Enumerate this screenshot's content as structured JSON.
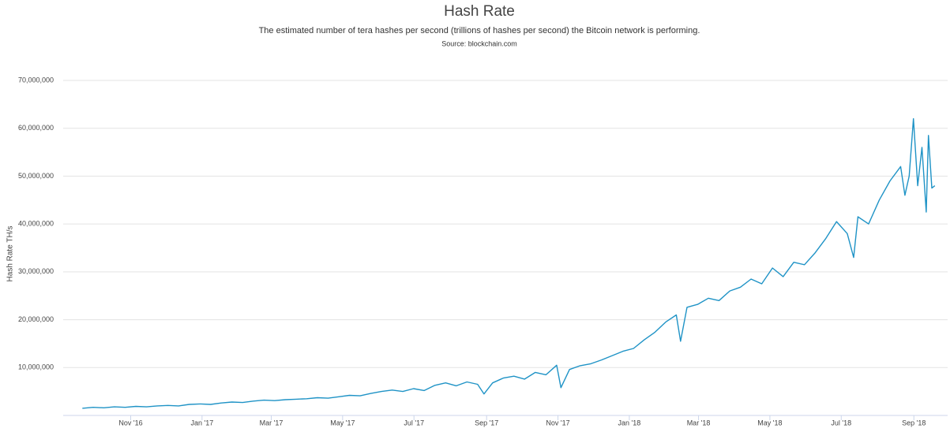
{
  "chart_data": {
    "type": "line",
    "title": "Hash Rate",
    "subtitle": "The estimated number of tera hashes per second (trillions of hashes per second) the Bitcoin network is performing.",
    "source": "Source: blockchain.com",
    "y_label": "Hash Rate TH/s",
    "color": "#1f93c6",
    "grid": true,
    "xlim": [
      2016.675,
      2018.745
    ],
    "ylim": [
      0,
      70000000
    ],
    "xticks": [
      {
        "value": 2016.833,
        "label": "Nov '16"
      },
      {
        "value": 2017.0,
        "label": "Jan '17"
      },
      {
        "value": 2017.162,
        "label": "Mar '17"
      },
      {
        "value": 2017.329,
        "label": "May '17"
      },
      {
        "value": 2017.496,
        "label": "Jul '17"
      },
      {
        "value": 2017.666,
        "label": "Sep '17"
      },
      {
        "value": 2017.833,
        "label": "Nov '17"
      },
      {
        "value": 2018.0,
        "label": "Jan '18"
      },
      {
        "value": 2018.162,
        "label": "Mar '18"
      },
      {
        "value": 2018.329,
        "label": "May '18"
      },
      {
        "value": 2018.496,
        "label": "Jul '18"
      },
      {
        "value": 2018.666,
        "label": "Sep '18"
      }
    ],
    "yticks": [
      {
        "value": 10000000,
        "label": "10,000,000"
      },
      {
        "value": 20000000,
        "label": "20,000,000"
      },
      {
        "value": 30000000,
        "label": "30,000,000"
      },
      {
        "value": 40000000,
        "label": "40,000,000"
      },
      {
        "value": 50000000,
        "label": "50,000,000"
      },
      {
        "value": 60000000,
        "label": "60,000,000"
      },
      {
        "value": 70000000,
        "label": "70,000,000"
      }
    ],
    "x": [
      2016.72,
      2016.745,
      2016.77,
      2016.795,
      2016.82,
      2016.845,
      2016.87,
      2016.895,
      2016.92,
      2016.945,
      2016.97,
      2016.995,
      2017.02,
      2017.045,
      2017.07,
      2017.095,
      2017.12,
      2017.145,
      2017.17,
      2017.195,
      2017.22,
      2017.245,
      2017.27,
      2017.295,
      2017.32,
      2017.345,
      2017.37,
      2017.395,
      2017.42,
      2017.445,
      2017.47,
      2017.495,
      2017.52,
      2017.545,
      2017.57,
      2017.595,
      2017.62,
      2017.645,
      2017.66,
      2017.68,
      2017.705,
      2017.73,
      2017.755,
      2017.78,
      2017.805,
      2017.83,
      2017.84,
      2017.86,
      2017.885,
      2017.91,
      2017.935,
      2017.96,
      2017.985,
      2018.01,
      2018.035,
      2018.06,
      2018.085,
      2018.11,
      2018.12,
      2018.135,
      2018.16,
      2018.185,
      2018.21,
      2018.235,
      2018.26,
      2018.285,
      2018.31,
      2018.335,
      2018.36,
      2018.385,
      2018.41,
      2018.435,
      2018.46,
      2018.485,
      2018.51,
      2018.525,
      2018.535,
      2018.56,
      2018.585,
      2018.61,
      2018.635,
      2018.645,
      2018.655,
      2018.665,
      2018.675,
      2018.685,
      2018.695,
      2018.7,
      2018.708,
      2018.715
    ],
    "values": [
      1500000,
      1700000,
      1600000,
      1800000,
      1700000,
      1900000,
      1800000,
      2000000,
      2100000,
      2000000,
      2300000,
      2400000,
      2300000,
      2600000,
      2800000,
      2700000,
      3000000,
      3200000,
      3100000,
      3300000,
      3400000,
      3500000,
      3700000,
      3600000,
      3900000,
      4200000,
      4100000,
      4600000,
      5000000,
      5300000,
      5000000,
      5600000,
      5200000,
      6300000,
      6800000,
      6200000,
      7000000,
      6500000,
      4500000,
      6800000,
      7800000,
      8200000,
      7600000,
      9000000,
      8500000,
      10500000,
      5800000,
      9600000,
      10400000,
      10800000,
      11600000,
      12500000,
      13400000,
      14000000,
      15800000,
      17400000,
      19500000,
      21000000,
      15500000,
      22600000,
      23200000,
      24500000,
      24000000,
      26000000,
      26800000,
      28500000,
      27500000,
      30800000,
      29000000,
      32000000,
      31500000,
      34000000,
      37000000,
      40500000,
      38000000,
      33000000,
      41500000,
      40000000,
      45000000,
      49000000,
      52000000,
      46000000,
      50000000,
      62000000,
      48000000,
      56000000,
      42500000,
      58500000,
      47500000,
      48000000
    ]
  }
}
